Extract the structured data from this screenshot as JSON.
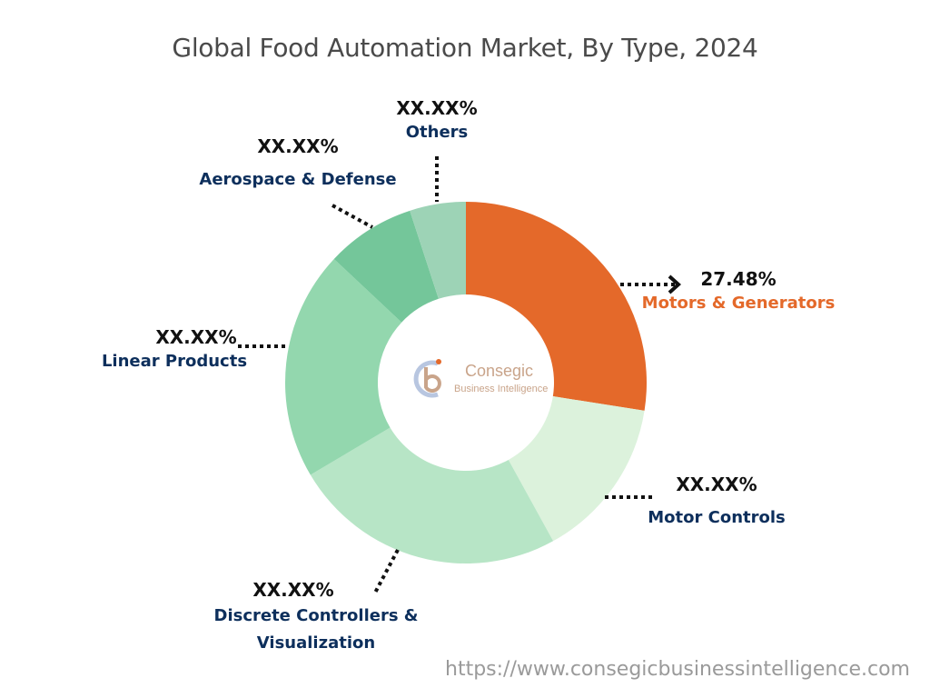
{
  "chart_data": {
    "type": "pie",
    "title": "Global Food Automation Market, By Type, 2024",
    "slices": [
      {
        "name": "Motors & Generators",
        "value": 27.48,
        "value_label": "27.48%",
        "color": "#e4692a",
        "label_color": "#e4692a"
      },
      {
        "name": "Motor Controls",
        "value": 14.5,
        "value_label": "XX.XX%",
        "color": "#dcf2dc",
        "label_color": "#0d2f5c"
      },
      {
        "name": "Discrete Controllers & Visualization",
        "value": 24.5,
        "value_label": "XX.XX%",
        "color": "#b7e5c6",
        "label_color": "#0d2f5c"
      },
      {
        "name": "Linear Products",
        "value": 20.5,
        "value_label": "XX.XX%",
        "color": "#93d7ae",
        "label_color": "#0d2f5c"
      },
      {
        "name": "Aerospace & Defense",
        "value": 8.0,
        "value_label": "XX.XX%",
        "color": "#74c69a",
        "label_color": "#0d2f5c"
      },
      {
        "name": "Others",
        "value": 5.02,
        "value_label": "XX.XX%",
        "color": "#9dd3b6",
        "label_color": "#0d2f5c"
      }
    ],
    "donut": true,
    "legend": "none"
  },
  "labels": {
    "discrete_line1": "Discrete Controllers &",
    "discrete_line2": "Visualization"
  },
  "watermark": {
    "line1": "Consegic",
    "line2": "Business Intelligence"
  },
  "source_url": "https://www.consegicbusinessintelligence.com"
}
